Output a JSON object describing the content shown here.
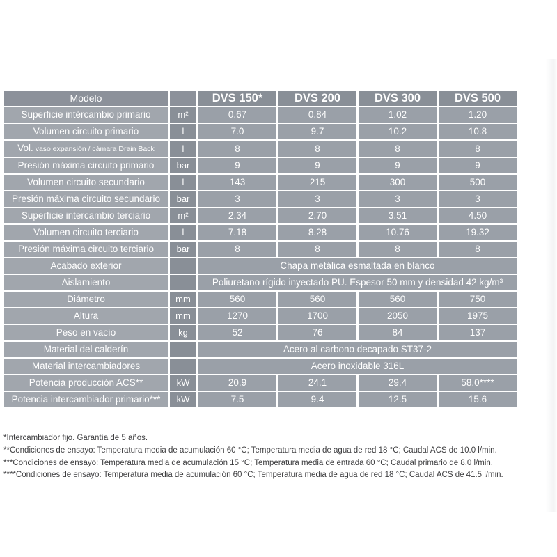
{
  "table": {
    "colors": {
      "header_bg": "#8c919a",
      "model_header_bg": "#898f97",
      "label_bg": "#a1a6ad",
      "unit_bg": "#898f97",
      "value_bg": "#9aa0a8",
      "text": "#ffffff",
      "separator": "#ffffff"
    },
    "header": {
      "label": "Modelo",
      "unit": "",
      "models": [
        "DVS 150*",
        "DVS 200",
        "DVS 300",
        "DVS 500"
      ]
    },
    "rows": [
      {
        "label": "Superficie intércambio primario",
        "unit": "m²",
        "values": [
          "0.67",
          "0.84",
          "1.02",
          "1.20"
        ]
      },
      {
        "label": "Volumen circuito primario",
        "unit": "l",
        "values": [
          "7.0",
          "9.7",
          "10.2",
          "10.8"
        ]
      },
      {
        "label": "Vol.",
        "label_small": " vaso expansión / cámara Drain Back",
        "unit": "l",
        "values": [
          "8",
          "8",
          "8",
          "8"
        ]
      },
      {
        "label": "Presión máxima circuito primario",
        "unit": "bar",
        "values": [
          "9",
          "9",
          "9",
          "9"
        ]
      },
      {
        "label": "Volumen circuito secundario",
        "unit": "l",
        "values": [
          "143",
          "215",
          "300",
          "500"
        ]
      },
      {
        "label": "Presión máxima circuito secundario",
        "unit": "bar",
        "values": [
          "3",
          "3",
          "3",
          "3"
        ]
      },
      {
        "label": "Superficie intercambio terciario",
        "unit": "m²",
        "values": [
          "2.34",
          "2.70",
          "3.51",
          "4.50"
        ]
      },
      {
        "label": "Volumen circuito terciario",
        "unit": "l",
        "values": [
          "7.18",
          "8.28",
          "10.76",
          "19.32"
        ]
      },
      {
        "label": "Presión máxima circuito terciario",
        "unit": "bar",
        "values": [
          "8",
          "8",
          "8",
          "8"
        ]
      },
      {
        "label": "Acabado exterior",
        "unit": "",
        "span_value": "Chapa metálica esmaltada en blanco"
      },
      {
        "label": "Aislamiento",
        "unit": "",
        "span_value": "Poliuretano rígido inyectado PU. Espesor 50 mm y densidad 42 kg/m³"
      },
      {
        "label": "Diámetro",
        "unit": "mm",
        "values": [
          "560",
          "560",
          "560",
          "750"
        ]
      },
      {
        "label": "Altura",
        "unit": "mm",
        "values": [
          "1270",
          "1700",
          "2050",
          "1975"
        ]
      },
      {
        "label": "Peso en vacío",
        "unit": "kg",
        "values": [
          "52",
          "76",
          "84",
          "137"
        ]
      },
      {
        "label": "Material del calderín",
        "unit": "",
        "span_value": "Acero al carbono decapado ST37-2"
      },
      {
        "label": "Material intercambiadores",
        "unit": "",
        "span_value": "Acero inoxidable 316L"
      },
      {
        "label": "Potencia producción ACS**",
        "unit": "kW",
        "values": [
          "20.9",
          "24.1",
          "29.4",
          "58.0****"
        ]
      },
      {
        "label": "Potencia intercambiador primario***",
        "unit": "kW",
        "values": [
          "7.5",
          "9.4",
          "12.5",
          "15.6"
        ]
      }
    ]
  },
  "footnotes": [
    "*Intercambiador fijo. Garantía de 5 años.",
    "**Condiciones de ensayo: Temperatura media de acumulación 60 °C; Temperatura media de agua de red 18 °C; Caudal ACS de 10.0 l/min.",
    "***Condiciones de ensayo: Temperatura media de acumulación 15 °C; Temperatura media de entrada 60 °C; Caudal primario de 8.0 l/min.",
    "****Condiciones de ensayo: Temperatura media de acumulación 60 °C; Temperatura media de agua de red 18 °C; Caudal ACS de 41.5 l/min."
  ]
}
